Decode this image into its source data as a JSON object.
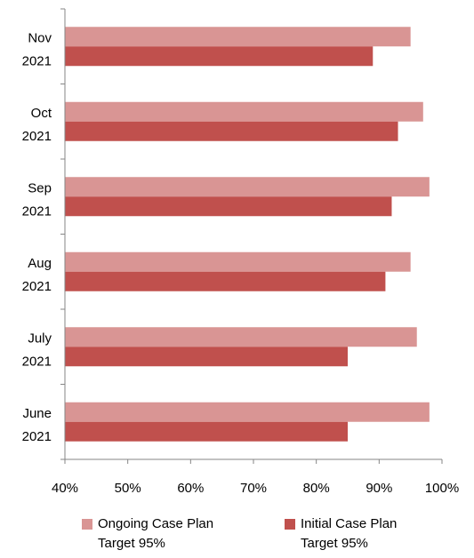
{
  "chart_data": {
    "type": "bar",
    "orientation": "horizontal",
    "categories": [
      [
        "June",
        "2021"
      ],
      [
        "July",
        "2021"
      ],
      [
        "Aug",
        "2021"
      ],
      [
        "Sep",
        "2021"
      ],
      [
        "Oct",
        "2021"
      ],
      [
        "Nov",
        "2021"
      ]
    ],
    "series": [
      {
        "name": "Ongoing Case Plan Target 95%",
        "color": "#d99594",
        "values": [
          98,
          96,
          95,
          98,
          97,
          95
        ]
      },
      {
        "name": "Initial Case Plan Target 95%",
        "color": "#c0504d",
        "values": [
          85,
          85,
          91,
          92,
          93,
          89
        ]
      }
    ],
    "xlim": [
      40,
      100
    ],
    "xticks": [
      "40%",
      "50%",
      "60%",
      "70%",
      "80%",
      "90%",
      "100%"
    ],
    "legend_position": "bottom",
    "grid": false
  },
  "legend": {
    "ongoing": {
      "line1": "Ongoing Case Plan",
      "line2": "Target 95%"
    },
    "initial": {
      "line1": "Initial Case Plan",
      "line2": "Target 95%"
    }
  }
}
